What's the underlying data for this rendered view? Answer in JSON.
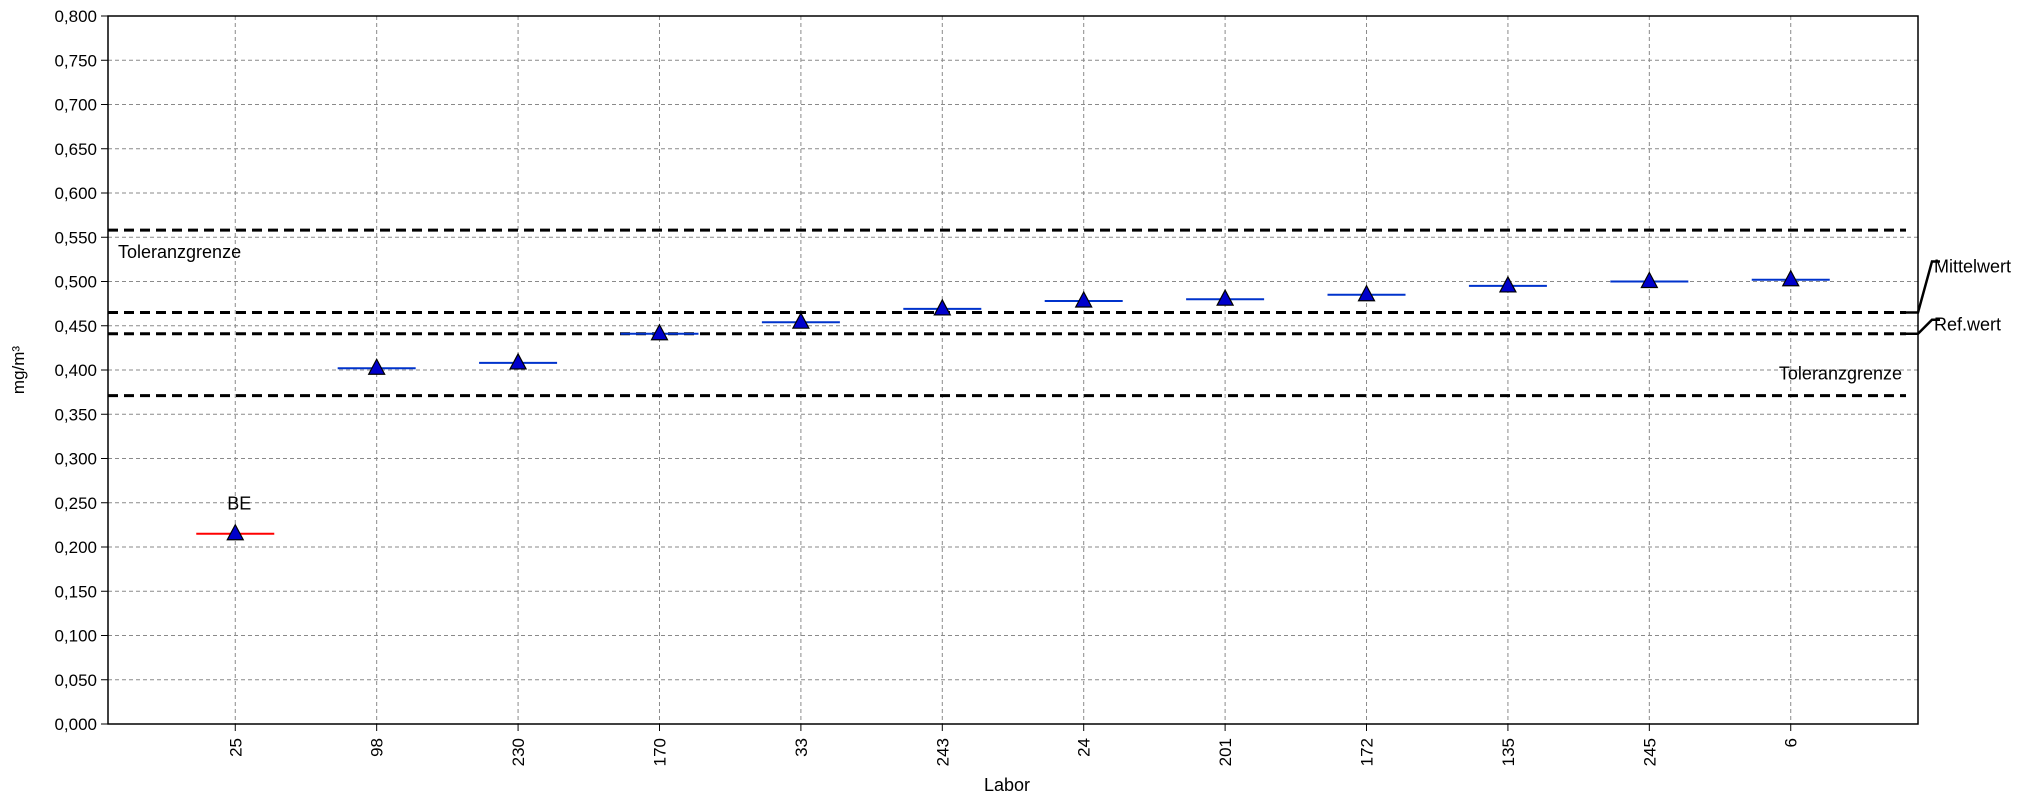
{
  "chart_data": {
    "type": "scatter",
    "title": "",
    "xlabel": "Labor",
    "ylabel": "mg/m³",
    "ylim": [
      0,
      0.8
    ],
    "ytick_step": 0.05,
    "ytick_decimals": 3,
    "decimal_separator": ",",
    "grid": true,
    "categories": [
      "25",
      "98",
      "230",
      "170",
      "33",
      "243",
      "24",
      "201",
      "172",
      "135",
      "245",
      "6"
    ],
    "values": [
      0.215,
      0.402,
      0.408,
      0.441,
      0.454,
      0.469,
      0.478,
      0.48,
      0.485,
      0.495,
      0.5,
      0.502
    ],
    "bar_colors": [
      "#ff0000",
      "#0033cc",
      "#0033cc",
      "#0033cc",
      "#0033cc",
      "#0033cc",
      "#0033cc",
      "#0033cc",
      "#0033cc",
      "#0033cc",
      "#0033cc",
      "#0033cc"
    ],
    "marker_color": "#0000cc",
    "point_labels": [
      {
        "category": "25",
        "text": "BE"
      }
    ],
    "reference_lines": [
      {
        "name": "upper-tolerance",
        "value": 0.558,
        "label": "Toleranzgrenze",
        "label_position": "top-left"
      },
      {
        "name": "mean",
        "value": 0.465,
        "label": "Mittelwert",
        "label_position": "right"
      },
      {
        "name": "reference",
        "value": 0.441,
        "label": "Ref.wert",
        "label_position": "right"
      },
      {
        "name": "lower-tolerance",
        "value": 0.371,
        "label": "Toleranzgrenze",
        "label_position": "top-right"
      }
    ]
  }
}
